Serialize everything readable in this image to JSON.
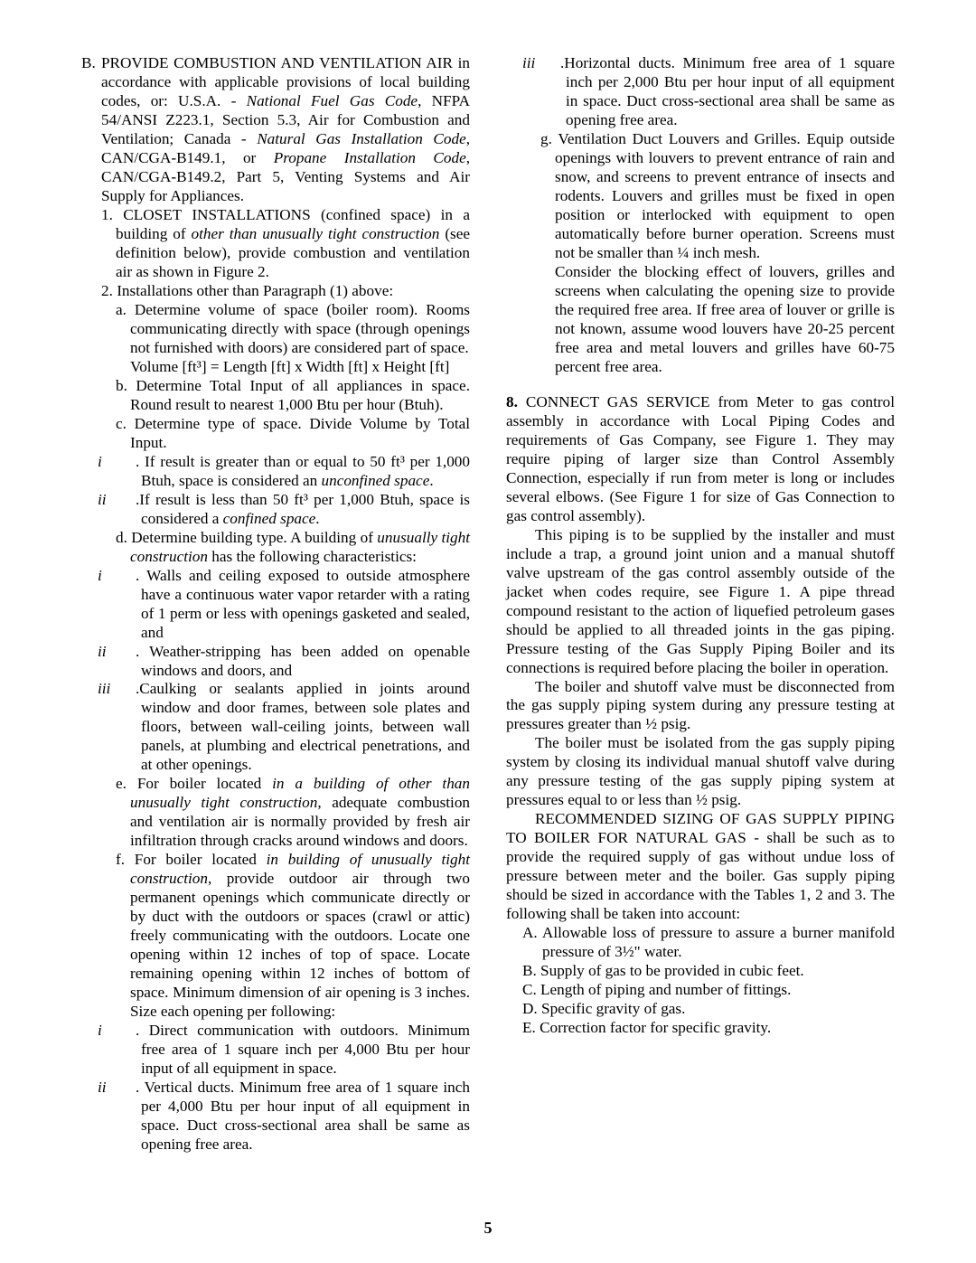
{
  "B_label": "B.",
  "B_text": "PROVIDE COMBUSTION AND VENTILATION AIR in accordance with applicable provisions of local building codes, or:  U.S.A. - ",
  "B_i1": "National Fuel Gas Code",
  "B_text2": ", NFPA 54/ANSI Z223.1, Section 5.3, Air for Combustion and Ventilation; Canada - ",
  "B_i2": "Natural Gas Installation Code",
  "B_text3": ", CAN/CGA-B149.1, or ",
  "B_i3": "Propane Installation Code",
  "B_text4": ", CAN/CGA-B149.2, Part 5, Venting Systems and Air Supply for Appliances.",
  "n1_text": "1. CLOSET INSTALLATIONS (confined space) in a building of ",
  "n1_i": "other than unusually tight construction",
  "n1_text2": " (see definition below), provide combustion and ventilation air as shown in Figure 2.",
  "n2_text": "2. Installations other than Paragraph (1) above:",
  "a_text": "a. Determine volume of space (boiler room). Rooms communicating directly with space (through openings not furnished with doors) are considered part of space.",
  "a_formula": "Volume [ft³] = Length [ft] x Width [ft] x Height [ft]",
  "b_text": "b. Determine Total Input of all appliances in space. Round result to nearest 1,000 Btu per hour (Btuh).",
  "c_text": "c. Determine type of space. Divide Volume by Total Input.",
  "c_i_r": "i",
  "c_i_text": ".  If result is greater than or equal to 50 ft³ per 1,000 Btuh, space is considered an ",
  "c_i_i": "unconfined space",
  "c_ii_r": "ii",
  "c_ii_text": ".If result is less than 50 ft³ per 1,000 Btuh, space is considered a ",
  "c_ii_i": "confined space",
  "d_text": "d. Determine building type. A building of ",
  "d_i": "unusually tight construction",
  "d_text2": " has the following characteristics:",
  "d_i_r": "i",
  "d_i_text": ".  Walls and ceiling exposed to outside atmosphere have a continuous water vapor retarder with a rating of 1 perm or less with openings gasketed and sealed, and",
  "d_ii_r": "ii",
  "d_ii_text": ". Weather-stripping has been added on openable windows and doors, and",
  "d_iii_r": "iii",
  "d_iii_text": ".Caulking or sealants applied in joints around window and door frames, between sole plates and floors, between wall-ceiling joints, between wall panels, at plumbing and electrical penetrations, and at other openings.",
  "e_text": "e. For boiler located ",
  "e_i": "in a building of other than unusually tight construction",
  "e_text2": ", adequate combustion and ventilation air is normally provided by fresh air infiltration through cracks around windows and doors.",
  "f_text": "f. For boiler located ",
  "f_i": "in building of unusually tight construction",
  "f_text2": ", provide outdoor air through two permanent openings which communicate directly or by duct with the outdoors or spaces (crawl or attic) freely communicating with the outdoors. Locate one opening within 12 inches of top of space. Locate remaining opening within 12 inches of bottom of space. Minimum dimension of air opening is 3 inches. Size each opening per following:",
  "f_i_r": "i",
  "f_i_text": ".  Direct communication with outdoors. Minimum free area of 1 square inch per 4,000 Btu per hour input of all equipment in space.",
  "f_ii_r": "ii",
  "f_ii_text": ". Vertical ducts. Minimum free area of 1 square inch per 4,000 Btu per hour input of all equipment in space. Duct cross-sectional area shall be same as opening free area.",
  "f_iii_r": "iii",
  "f_iii_text": ".Horizontal ducts. Minimum free area of 1 square inch per 2,000 Btu per hour input of all equipment in space. Duct cross-sectional area shall be same as opening free area.",
  "g_text": "g. Ventilation Duct Louvers and Grilles. Equip outside openings with louvers to prevent entrance of rain and snow, and screens to prevent entrance of insects and rodents. Louvers and grilles must be fixed in open position or interlocked with equipment to open automatically before burner operation. Screens must not be smaller than ¼ inch mesh.",
  "g_text2": "Consider the blocking effect of louvers, grilles and screens when calculating the opening size to provide the required free area. If free area of louver or grille is not known, assume wood louvers have 20-25 percent free area and metal louvers and grilles have 60-75 percent free area.",
  "s8_num": "8.",
  "s8_text": "   CONNECT GAS SERVICE from Meter to gas control assembly in accordance with Local Piping Codes and requirements of Gas Company, see Figure 1. They may require piping of larger size than Control Assembly Connection, especially if run from meter is long or includes several elbows. (See Figure 1 for size of Gas Connection to gas control assembly).",
  "s8_p2": "This piping is to be supplied by the installer and must include a trap, a ground joint union and a manual shutoff valve upstream of the gas control assembly outside of the jacket when codes require, see Figure 1. A pipe thread compound resistant to the action of liquefied petroleum gases should be applied to all threaded joints in the gas piping. Pressure testing of the Gas Supply Piping Boiler and its connections is required before placing the boiler in operation.",
  "s8_p3": "The boiler and shutoff valve must be disconnected from the gas supply piping system during any pressure testing at pressures greater than ½ psig.",
  "s8_p4": "The boiler must be isolated from the gas supply piping system by closing its individual manual shutoff valve during any pressure testing of the gas supply piping system at pressures equal to or less than ½ psig.",
  "s8_p5": "RECOMMENDED SIZING OF GAS SUPPLY PIPING TO BOILER FOR NATURAL GAS - shall be such as to provide the required supply of gas without undue loss of pressure between meter and the boiler. Gas supply piping should be sized in accordance with the Tables 1, 2 and 3. The following shall be taken into account:",
  "LA": "A. Allowable loss of pressure to assure a burner manifold pressure of 3½\" water.",
  "LB": "B. Supply of gas to be provided in cubic feet.",
  "LC": "C. Length of piping and number of fittings.",
  "LD": "D. Specific gravity of gas.",
  "LE": "E. Correction factor for specific gravity.",
  "page": "5"
}
